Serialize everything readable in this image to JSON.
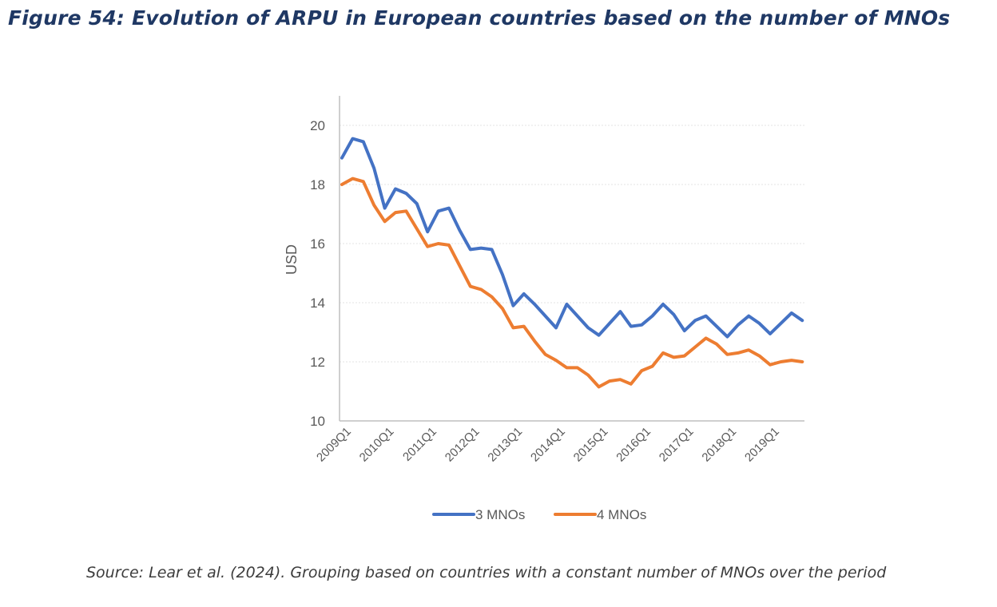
{
  "figure": {
    "title": "Figure 54: Evolution of ARPU in European countries based on the number of MNOs",
    "source": "Source: Lear et al. (2024). Grouping based on countries with a constant number of MNOs over the period"
  },
  "chart_data": {
    "type": "line",
    "ylabel": "USD",
    "xlabel": "",
    "ylim": [
      10,
      21
    ],
    "yticks": [
      10,
      12,
      14,
      16,
      18,
      20
    ],
    "grid": true,
    "legend_position": "bottom",
    "x": [
      "2009Q1",
      "2009Q2",
      "2009Q3",
      "2009Q4",
      "2010Q1",
      "2010Q2",
      "2010Q3",
      "2010Q4",
      "2011Q1",
      "2011Q2",
      "2011Q3",
      "2011Q4",
      "2012Q1",
      "2012Q2",
      "2012Q3",
      "2012Q4",
      "2013Q1",
      "2013Q2",
      "2013Q3",
      "2013Q4",
      "2014Q1",
      "2014Q2",
      "2014Q3",
      "2014Q4",
      "2015Q1",
      "2015Q2",
      "2015Q3",
      "2015Q4",
      "2016Q1",
      "2016Q2",
      "2016Q3",
      "2016Q4",
      "2017Q1",
      "2017Q2",
      "2017Q3",
      "2017Q4",
      "2018Q1",
      "2018Q2",
      "2018Q3",
      "2018Q4",
      "2019Q1",
      "2019Q2",
      "2019Q3",
      "2019Q4"
    ],
    "x_tick_labels": [
      "2009Q1",
      "2010Q1",
      "2011Q1",
      "2012Q1",
      "2013Q1",
      "2014Q1",
      "2015Q1",
      "2016Q1",
      "2017Q1",
      "2018Q1",
      "2019Q1"
    ],
    "series": [
      {
        "name": "3 MNOs",
        "color": "#4472c4",
        "values": [
          18.9,
          19.55,
          19.45,
          18.55,
          17.2,
          17.85,
          17.7,
          17.35,
          16.4,
          17.1,
          17.2,
          16.45,
          15.8,
          15.85,
          15.8,
          14.95,
          13.9,
          14.3,
          13.95,
          13.55,
          13.15,
          13.95,
          13.55,
          13.15,
          12.9,
          13.3,
          13.7,
          13.2,
          13.25,
          13.55,
          13.95,
          13.6,
          13.05,
          13.4,
          13.55,
          13.2,
          12.85,
          13.25,
          13.55,
          13.3,
          12.95,
          13.3,
          13.65,
          13.4
        ]
      },
      {
        "name": "4 MNOs",
        "color": "#ed7d31",
        "values": [
          18.0,
          18.2,
          18.1,
          17.3,
          16.75,
          17.05,
          17.1,
          16.5,
          15.9,
          16.0,
          15.95,
          15.25,
          14.55,
          14.45,
          14.2,
          13.8,
          13.15,
          13.2,
          12.7,
          12.25,
          12.05,
          11.8,
          11.8,
          11.55,
          11.15,
          11.35,
          11.4,
          11.25,
          11.7,
          11.85,
          12.3,
          12.15,
          12.2,
          12.5,
          12.8,
          12.6,
          12.25,
          12.3,
          12.4,
          12.2,
          11.9,
          12.0,
          12.05,
          12.0
        ]
      }
    ]
  }
}
